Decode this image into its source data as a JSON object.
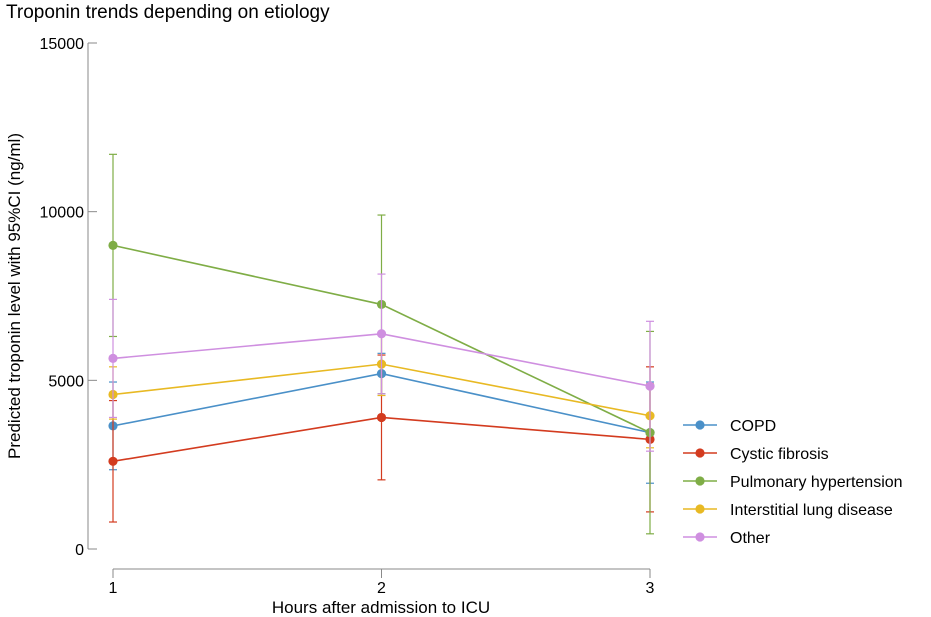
{
  "chart_data": {
    "type": "line",
    "title": "Troponin trends depending on etiology",
    "xlabel": "Hours after admission to ICU",
    "ylabel": "Predicted troponin level with 95%CI (ng/ml)",
    "x": [
      1,
      2,
      3
    ],
    "x_ticks": [
      "1",
      "2",
      "3"
    ],
    "y_ticks": [
      "0",
      "5000",
      "10000",
      "15000"
    ],
    "ylim": [
      0,
      15000
    ],
    "grid": false,
    "legend_position": "bottom-right",
    "series": [
      {
        "name": "COPD",
        "color": "#4a90c8",
        "values": [
          3650,
          5200,
          3450
        ],
        "ci_low": [
          2350,
          4600,
          1950
        ],
        "ci_high": [
          4950,
          5800,
          4950
        ]
      },
      {
        "name": "Cystic fibrosis",
        "color": "#d33b1f",
        "values": [
          2600,
          3900,
          3250
        ],
        "ci_low": [
          800,
          2050,
          1100
        ],
        "ci_high": [
          4400,
          5750,
          5400
        ]
      },
      {
        "name": "Pulmonary hypertension",
        "color": "#7fad46",
        "values": [
          9000,
          7250,
          3450
        ],
        "ci_low": [
          6300,
          4600,
          450
        ],
        "ci_high": [
          11700,
          9900,
          6450
        ]
      },
      {
        "name": "Interstitial lung disease",
        "color": "#e8b923",
        "values": [
          4580,
          5480,
          3950
        ],
        "ci_low": [
          3850,
          4550,
          3000
        ],
        "ci_high": [
          5400,
          6400,
          4900
        ]
      },
      {
        "name": "Other",
        "color": "#cf8fe0",
        "values": [
          5650,
          6380,
          4830
        ],
        "ci_low": [
          3900,
          4600,
          2900
        ],
        "ci_high": [
          7400,
          8150,
          6750
        ]
      }
    ]
  }
}
